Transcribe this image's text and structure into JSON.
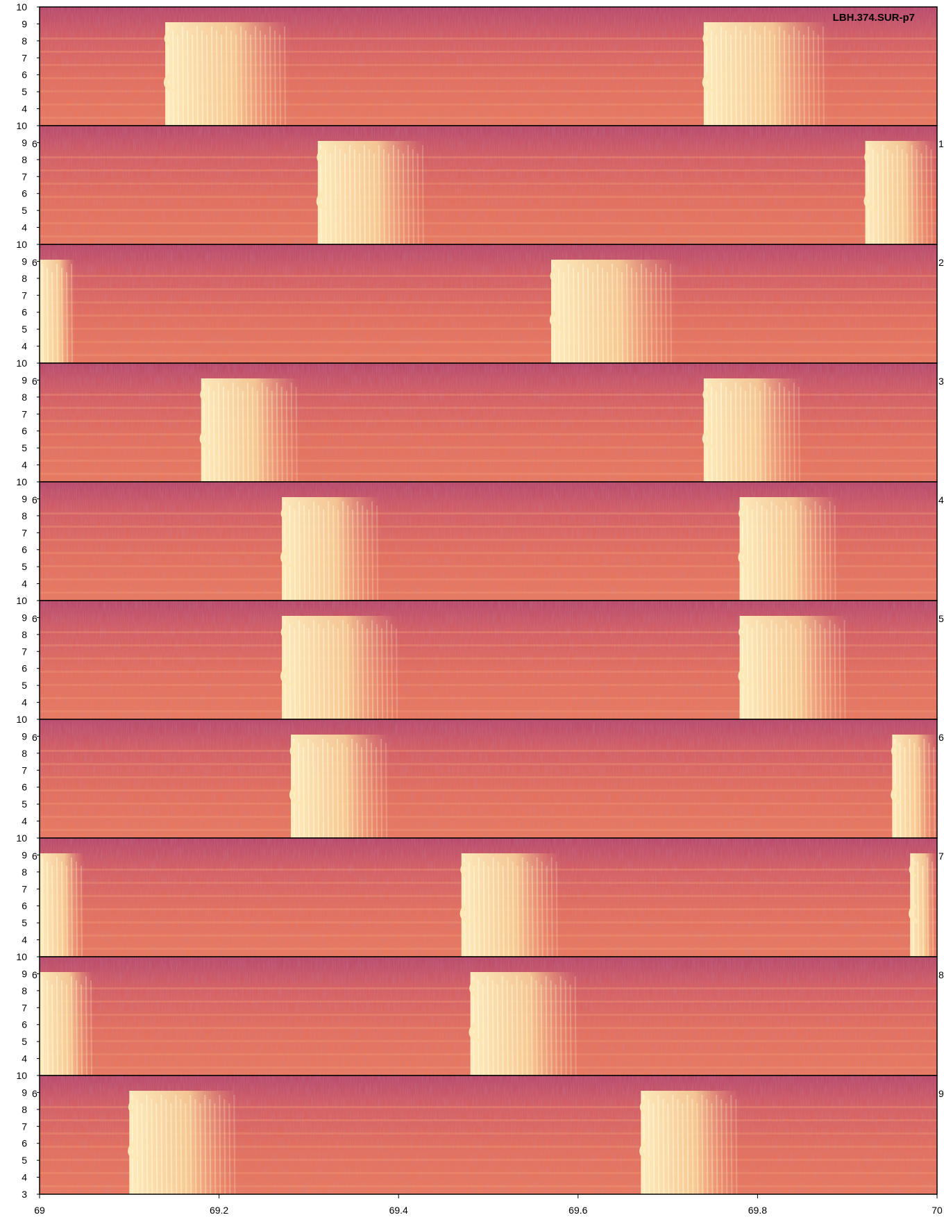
{
  "chart_data": {
    "type": "heatmap",
    "kind": "spectrogram",
    "title": "LBH.374.SUR-p7",
    "panel_count": 10,
    "x_tick_labels": [
      "69",
      "69.2",
      "69.4",
      "69.6",
      "69.8",
      "70"
    ],
    "x_range": [
      69,
      70
    ],
    "y_range_top_panels": [
      3,
      10
    ],
    "y_range_bottom_panel": [
      3,
      10
    ],
    "y_tick_labels_upper": [
      "4",
      "5",
      "6",
      "7",
      "8",
      "9",
      "10"
    ],
    "y_tick_labels_bottom": [
      "3",
      "4",
      "5",
      "6",
      "7",
      "8",
      "9",
      "10"
    ],
    "right_labels": [
      "",
      "1",
      "2",
      "3",
      "4",
      "5",
      "6",
      "7",
      "8",
      "9"
    ],
    "left_labels": [
      "",
      "6",
      "6",
      "6",
      "6",
      "6",
      "6",
      "6",
      "6",
      "6"
    ],
    "panels": [
      {
        "index": 0,
        "calls": [
          [
            0.14,
            0.28
          ],
          [
            0.74,
            0.88
          ]
        ]
      },
      {
        "index": 1,
        "calls": [
          [
            0.31,
            0.43
          ],
          [
            0.92,
            1.0
          ]
        ]
      },
      {
        "index": 2,
        "calls": [
          [
            0.0,
            0.04
          ],
          [
            0.57,
            0.71
          ]
        ]
      },
      {
        "index": 3,
        "calls": [
          [
            0.18,
            0.29
          ],
          [
            0.74,
            0.85
          ]
        ]
      },
      {
        "index": 4,
        "calls": [
          [
            0.27,
            0.38
          ],
          [
            0.78,
            0.89
          ]
        ]
      },
      {
        "index": 5,
        "calls": [
          [
            0.27,
            0.4
          ],
          [
            0.78,
            0.9
          ]
        ]
      },
      {
        "index": 6,
        "calls": [
          [
            0.28,
            0.39
          ],
          [
            0.95,
            1.0
          ]
        ]
      },
      {
        "index": 7,
        "calls": [
          [
            0.0,
            0.05
          ],
          [
            0.47,
            0.58
          ],
          [
            0.97,
            1.0
          ]
        ]
      },
      {
        "index": 8,
        "calls": [
          [
            0.0,
            0.06
          ],
          [
            0.48,
            0.6
          ]
        ]
      },
      {
        "index": 9,
        "calls": [
          [
            0.1,
            0.22
          ],
          [
            0.67,
            0.78
          ]
        ]
      }
    ],
    "colors": {
      "background": "#e06a5e",
      "dark": "#a8406a",
      "bright": "#fde3a7",
      "mid": "#ee8a66",
      "axis": "#000000"
    }
  }
}
